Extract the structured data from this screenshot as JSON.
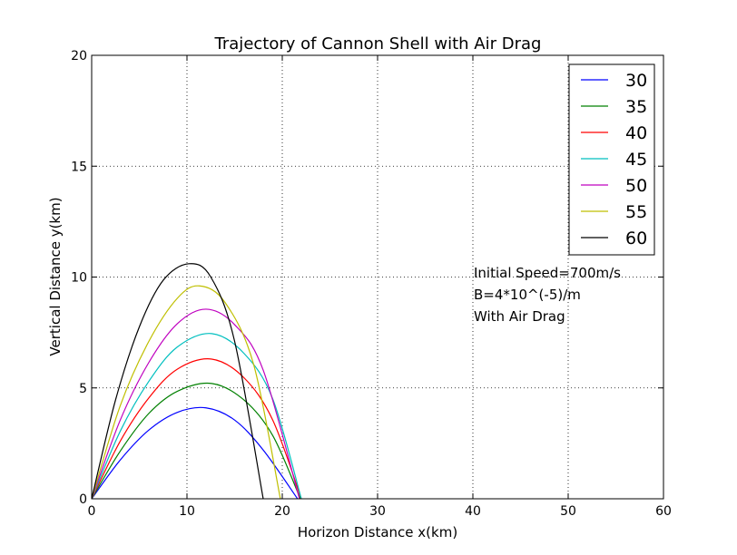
{
  "chart_data": {
    "type": "line",
    "title": "Trajectory of Cannon Shell with Air Drag",
    "xlabel": "Horizon Distance x(km)",
    "ylabel": "Vertical Distance y(km)",
    "xlim": [
      0,
      60
    ],
    "ylim": [
      0,
      20
    ],
    "xticks": [
      0,
      10,
      20,
      30,
      40,
      50,
      60
    ],
    "yticks": [
      0,
      5,
      10,
      15,
      20
    ],
    "grid": true,
    "legend_position": "top-right",
    "annotations": [
      "Initial Speed=700m/s",
      "B=4*10^(-5)/m",
      "With Air Drag"
    ],
    "series": [
      {
        "name": "30",
        "color": "#0000ff",
        "x": [
          0,
          3,
          6,
          9,
          12,
          15,
          18,
          21.6
        ],
        "y": [
          0,
          1.75,
          3.1,
          3.9,
          4.1,
          3.55,
          2.2,
          0
        ]
      },
      {
        "name": "35",
        "color": "#008000",
        "x": [
          0,
          3,
          6,
          9,
          12.6,
          16,
          19,
          21.9
        ],
        "y": [
          0,
          2.15,
          3.85,
          4.85,
          5.2,
          4.45,
          2.85,
          0
        ]
      },
      {
        "name": "40",
        "color": "#ff0000",
        "x": [
          0,
          3,
          6,
          9,
          12.6,
          16,
          19,
          22.0
        ],
        "y": [
          0,
          2.6,
          4.55,
          5.85,
          6.3,
          5.45,
          3.55,
          0
        ]
      },
      {
        "name": "45",
        "color": "#00bfbf",
        "x": [
          0,
          3,
          6,
          9,
          12.6,
          16,
          19,
          22.0
        ],
        "y": [
          0,
          3.05,
          5.3,
          6.85,
          7.45,
          6.55,
          4.5,
          0
        ]
      },
      {
        "name": "50",
        "color": "#bf00bf",
        "x": [
          0,
          3,
          6,
          9,
          12.0,
          15,
          18,
          21.8
        ],
        "y": [
          0,
          3.55,
          6.15,
          7.9,
          8.55,
          7.85,
          5.8,
          0
        ]
      },
      {
        "name": "55",
        "color": "#bfbf00",
        "x": [
          0,
          3,
          6,
          9,
          11.3,
          14,
          17,
          19.8
        ],
        "y": [
          0,
          4.2,
          7.1,
          9.05,
          9.6,
          8.85,
          6.05,
          0
        ]
      },
      {
        "name": "60",
        "color": "#000000",
        "x": [
          0,
          2.5,
          5,
          7.5,
          10.2,
          12.5,
          15,
          18.0
        ],
        "y": [
          0,
          4.45,
          7.75,
          9.85,
          10.6,
          10.0,
          7.1,
          0
        ]
      }
    ]
  }
}
